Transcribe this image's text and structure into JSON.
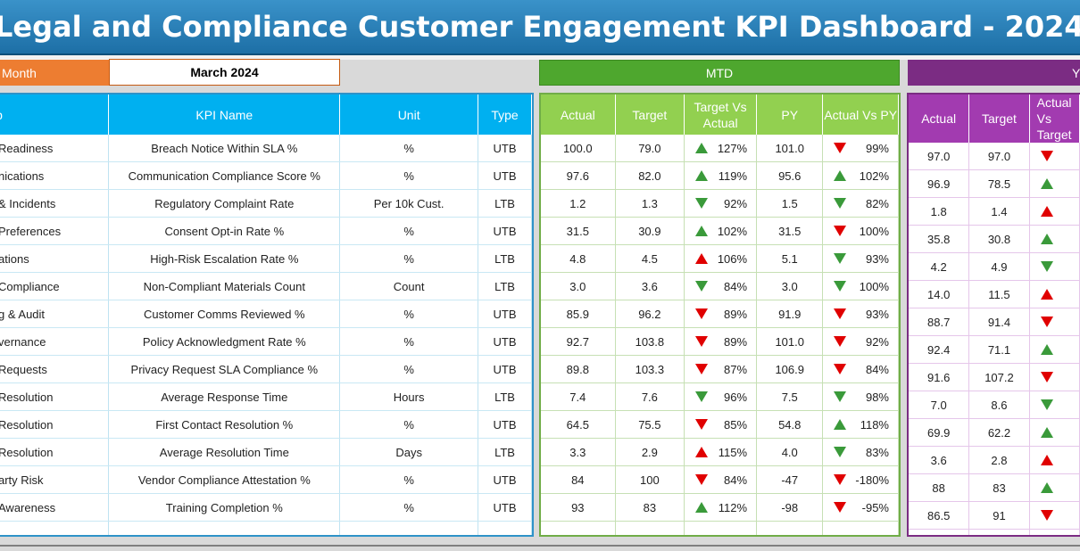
{
  "title": "Legal and Compliance Customer Engagement KPI Dashboard - 2024",
  "month_selector": {
    "label": "Month",
    "value": "March 2024"
  },
  "sections": {
    "mtd": "MTD",
    "ytd": "YTD"
  },
  "left_headers": {
    "group": "Group",
    "kpi_name": "KPI Name",
    "unit": "Unit",
    "type": "Type"
  },
  "mtd_headers": {
    "actual": "Actual",
    "target": "Target",
    "tva": "Target Vs Actual",
    "py": "PY",
    "avp": "Actual Vs PY"
  },
  "ytd_headers": {
    "actual": "Actual",
    "target": "Target",
    "tva": "Actual Vs Target"
  },
  "colors": {
    "title_bg": "#2a82bb",
    "month_label_bg": "#ed7d31",
    "mtd_bg": "#4ea72e",
    "ytd_bg": "#7b2c83",
    "left_header_bg": "#00b0f0",
    "mtd_header_bg": "#92d050",
    "ytd_header_bg": "#a23bb0",
    "up_good": "#3a9a3a",
    "down_bad": "#e00000"
  },
  "rows": [
    {
      "group": "Readiness",
      "kpi": "Breach Notice Within SLA %",
      "unit": "%",
      "type": "UTB",
      "mtd": {
        "actual": "100.0",
        "target": "79.0",
        "tva": "127%",
        "tva_icon": "up-green",
        "py": "101.0",
        "avp": "99%",
        "avp_icon": "down-red"
      },
      "ytd": {
        "actual": "97.0",
        "target": "97.0",
        "icon": "down-red"
      }
    },
    {
      "group": "nications",
      "kpi": "Communication Compliance Score %",
      "unit": "%",
      "type": "UTB",
      "mtd": {
        "actual": "97.6",
        "target": "82.0",
        "tva": "119%",
        "tva_icon": "up-green",
        "py": "95.6",
        "avp": "102%",
        "avp_icon": "up-green"
      },
      "ytd": {
        "actual": "96.9",
        "target": "78.5",
        "icon": "up-green"
      }
    },
    {
      "group": "& Incidents",
      "kpi": "Regulatory Complaint Rate",
      "unit": "Per 10k Cust.",
      "type": "LTB",
      "mtd": {
        "actual": "1.2",
        "target": "1.3",
        "tva": "92%",
        "tva_icon": "down-green",
        "py": "1.5",
        "avp": "82%",
        "avp_icon": "down-green"
      },
      "ytd": {
        "actual": "1.8",
        "target": "1.4",
        "icon": "up-red"
      }
    },
    {
      "group": "Preferences",
      "kpi": "Consent Opt-in Rate %",
      "unit": "%",
      "type": "UTB",
      "mtd": {
        "actual": "31.5",
        "target": "30.9",
        "tva": "102%",
        "tva_icon": "up-green",
        "py": "31.5",
        "avp": "100%",
        "avp_icon": "down-red"
      },
      "ytd": {
        "actual": "35.8",
        "target": "30.8",
        "icon": "up-green"
      }
    },
    {
      "group": "ations",
      "kpi": "High-Risk Escalation Rate %",
      "unit": "%",
      "type": "LTB",
      "mtd": {
        "actual": "4.8",
        "target": "4.5",
        "tva": "106%",
        "tva_icon": "up-red",
        "py": "5.1",
        "avp": "93%",
        "avp_icon": "down-green"
      },
      "ytd": {
        "actual": "4.2",
        "target": "4.9",
        "icon": "down-green"
      }
    },
    {
      "group": "Compliance",
      "kpi": "Non-Compliant Materials Count",
      "unit": "Count",
      "type": "LTB",
      "mtd": {
        "actual": "3.0",
        "target": "3.6",
        "tva": "84%",
        "tva_icon": "down-green",
        "py": "3.0",
        "avp": "100%",
        "avp_icon": "down-green"
      },
      "ytd": {
        "actual": "14.0",
        "target": "11.5",
        "icon": "up-red"
      }
    },
    {
      "group": "g & Audit",
      "kpi": "Customer Comms Reviewed %",
      "unit": "%",
      "type": "UTB",
      "mtd": {
        "actual": "85.9",
        "target": "96.2",
        "tva": "89%",
        "tva_icon": "down-red",
        "py": "91.9",
        "avp": "93%",
        "avp_icon": "down-red"
      },
      "ytd": {
        "actual": "88.7",
        "target": "91.4",
        "icon": "down-red"
      }
    },
    {
      "group": "vernance",
      "kpi": "Policy Acknowledgment Rate %",
      "unit": "%",
      "type": "UTB",
      "mtd": {
        "actual": "92.7",
        "target": "103.8",
        "tva": "89%",
        "tva_icon": "down-red",
        "py": "101.0",
        "avp": "92%",
        "avp_icon": "down-red"
      },
      "ytd": {
        "actual": "92.4",
        "target": "71.1",
        "icon": "up-green"
      }
    },
    {
      "group": "Requests",
      "kpi": "Privacy Request SLA Compliance %",
      "unit": "%",
      "type": "UTB",
      "mtd": {
        "actual": "89.8",
        "target": "103.3",
        "tva": "87%",
        "tva_icon": "down-red",
        "py": "106.9",
        "avp": "84%",
        "avp_icon": "down-red"
      },
      "ytd": {
        "actual": "91.6",
        "target": "107.2",
        "icon": "down-red"
      }
    },
    {
      "group": "Resolution",
      "kpi": "Average Response Time",
      "unit": "Hours",
      "type": "LTB",
      "mtd": {
        "actual": "7.4",
        "target": "7.6",
        "tva": "96%",
        "tva_icon": "down-green",
        "py": "7.5",
        "avp": "98%",
        "avp_icon": "down-green"
      },
      "ytd": {
        "actual": "7.0",
        "target": "8.6",
        "icon": "down-green"
      }
    },
    {
      "group": "Resolution",
      "kpi": "First Contact Resolution %",
      "unit": "%",
      "type": "UTB",
      "mtd": {
        "actual": "64.5",
        "target": "75.5",
        "tva": "85%",
        "tva_icon": "down-red",
        "py": "54.8",
        "avp": "118%",
        "avp_icon": "up-green"
      },
      "ytd": {
        "actual": "69.9",
        "target": "62.2",
        "icon": "up-green"
      }
    },
    {
      "group": "Resolution",
      "kpi": "Average Resolution Time",
      "unit": "Days",
      "type": "LTB",
      "mtd": {
        "actual": "3.3",
        "target": "2.9",
        "tva": "115%",
        "tva_icon": "up-red",
        "py": "4.0",
        "avp": "83%",
        "avp_icon": "down-green"
      },
      "ytd": {
        "actual": "3.6",
        "target": "2.8",
        "icon": "up-red"
      }
    },
    {
      "group": "arty Risk",
      "kpi": "Vendor Compliance Attestation %",
      "unit": "%",
      "type": "UTB",
      "mtd": {
        "actual": "84",
        "target": "100",
        "tva": "84%",
        "tva_icon": "down-red",
        "py": "-47",
        "avp": "-180%",
        "avp_icon": "down-red"
      },
      "ytd": {
        "actual": "88",
        "target": "83",
        "icon": "up-green"
      }
    },
    {
      "group": "Awareness",
      "kpi": "Training Completion %",
      "unit": "%",
      "type": "UTB",
      "mtd": {
        "actual": "93",
        "target": "83",
        "tva": "112%",
        "tva_icon": "up-green",
        "py": "-98",
        "avp": "-95%",
        "avp_icon": "down-red"
      },
      "ytd": {
        "actual": "86.5",
        "target": "91",
        "icon": "down-red"
      }
    }
  ]
}
